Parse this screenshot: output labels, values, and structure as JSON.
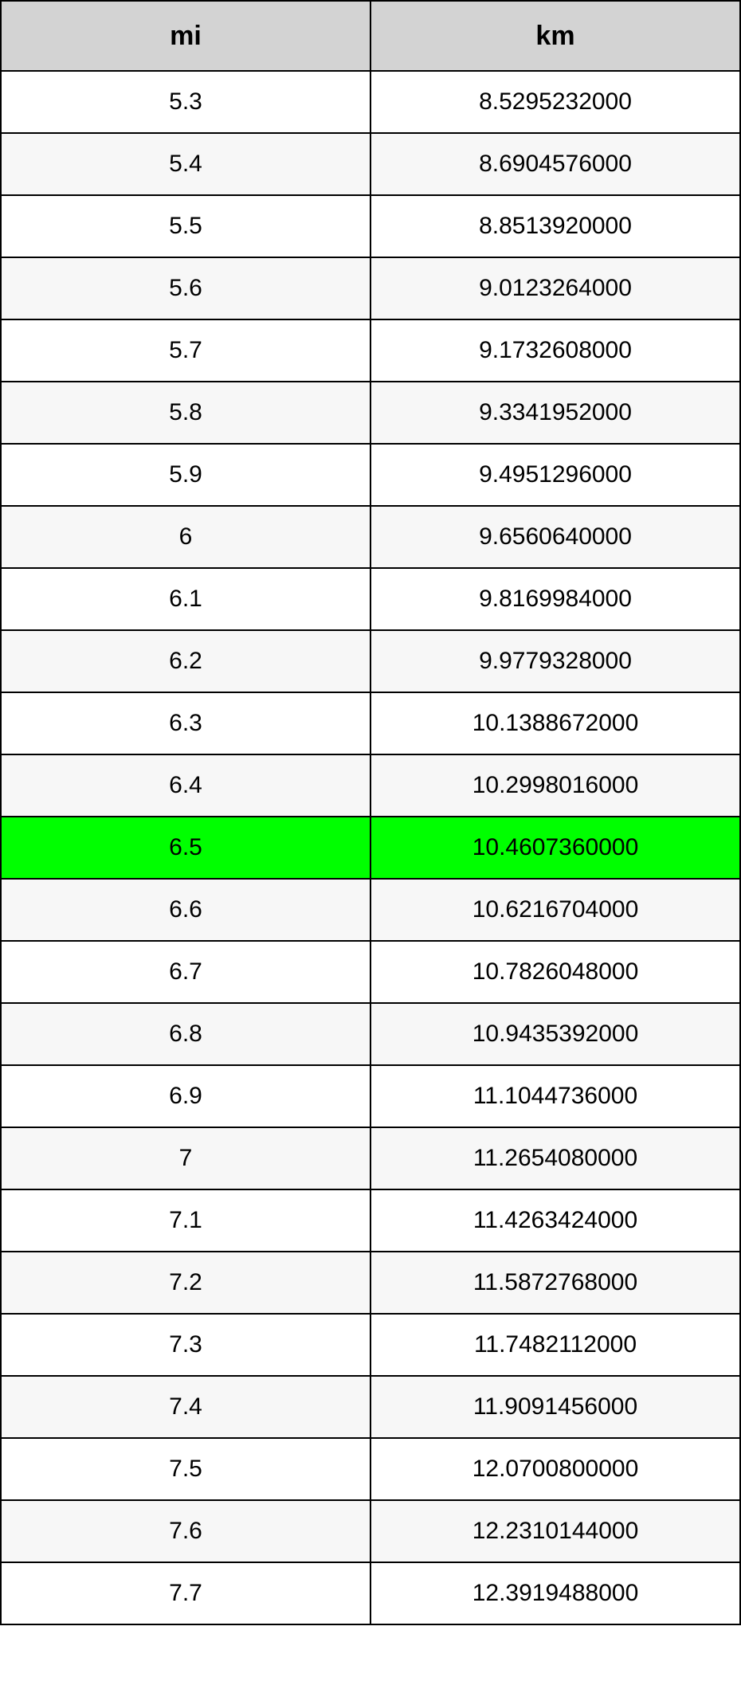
{
  "table": {
    "type": "table",
    "header_background": "#d3d3d3",
    "row_background_even": "#ffffff",
    "row_background_odd": "#f7f7f7",
    "highlight_background": "#00ff00",
    "border_color": "#000000",
    "text_color": "#000000",
    "header_fontsize": 34,
    "cell_fontsize": 30,
    "columns": [
      {
        "label": "mi"
      },
      {
        "label": "km"
      }
    ],
    "rows": [
      {
        "mi": "5.3",
        "km": "8.5295232000",
        "highlight": false
      },
      {
        "mi": "5.4",
        "km": "8.6904576000",
        "highlight": false
      },
      {
        "mi": "5.5",
        "km": "8.8513920000",
        "highlight": false
      },
      {
        "mi": "5.6",
        "km": "9.0123264000",
        "highlight": false
      },
      {
        "mi": "5.7",
        "km": "9.1732608000",
        "highlight": false
      },
      {
        "mi": "5.8",
        "km": "9.3341952000",
        "highlight": false
      },
      {
        "mi": "5.9",
        "km": "9.4951296000",
        "highlight": false
      },
      {
        "mi": "6",
        "km": "9.6560640000",
        "highlight": false
      },
      {
        "mi": "6.1",
        "km": "9.8169984000",
        "highlight": false
      },
      {
        "mi": "6.2",
        "km": "9.9779328000",
        "highlight": false
      },
      {
        "mi": "6.3",
        "km": "10.1388672000",
        "highlight": false
      },
      {
        "mi": "6.4",
        "km": "10.2998016000",
        "highlight": false
      },
      {
        "mi": "6.5",
        "km": "10.4607360000",
        "highlight": true
      },
      {
        "mi": "6.6",
        "km": "10.6216704000",
        "highlight": false
      },
      {
        "mi": "6.7",
        "km": "10.7826048000",
        "highlight": false
      },
      {
        "mi": "6.8",
        "km": "10.9435392000",
        "highlight": false
      },
      {
        "mi": "6.9",
        "km": "11.1044736000",
        "highlight": false
      },
      {
        "mi": "7",
        "km": "11.2654080000",
        "highlight": false
      },
      {
        "mi": "7.1",
        "km": "11.4263424000",
        "highlight": false
      },
      {
        "mi": "7.2",
        "km": "11.5872768000",
        "highlight": false
      },
      {
        "mi": "7.3",
        "km": "11.7482112000",
        "highlight": false
      },
      {
        "mi": "7.4",
        "km": "11.9091456000",
        "highlight": false
      },
      {
        "mi": "7.5",
        "km": "12.0700800000",
        "highlight": false
      },
      {
        "mi": "7.6",
        "km": "12.2310144000",
        "highlight": false
      },
      {
        "mi": "7.7",
        "km": "12.3919488000",
        "highlight": false
      }
    ]
  }
}
